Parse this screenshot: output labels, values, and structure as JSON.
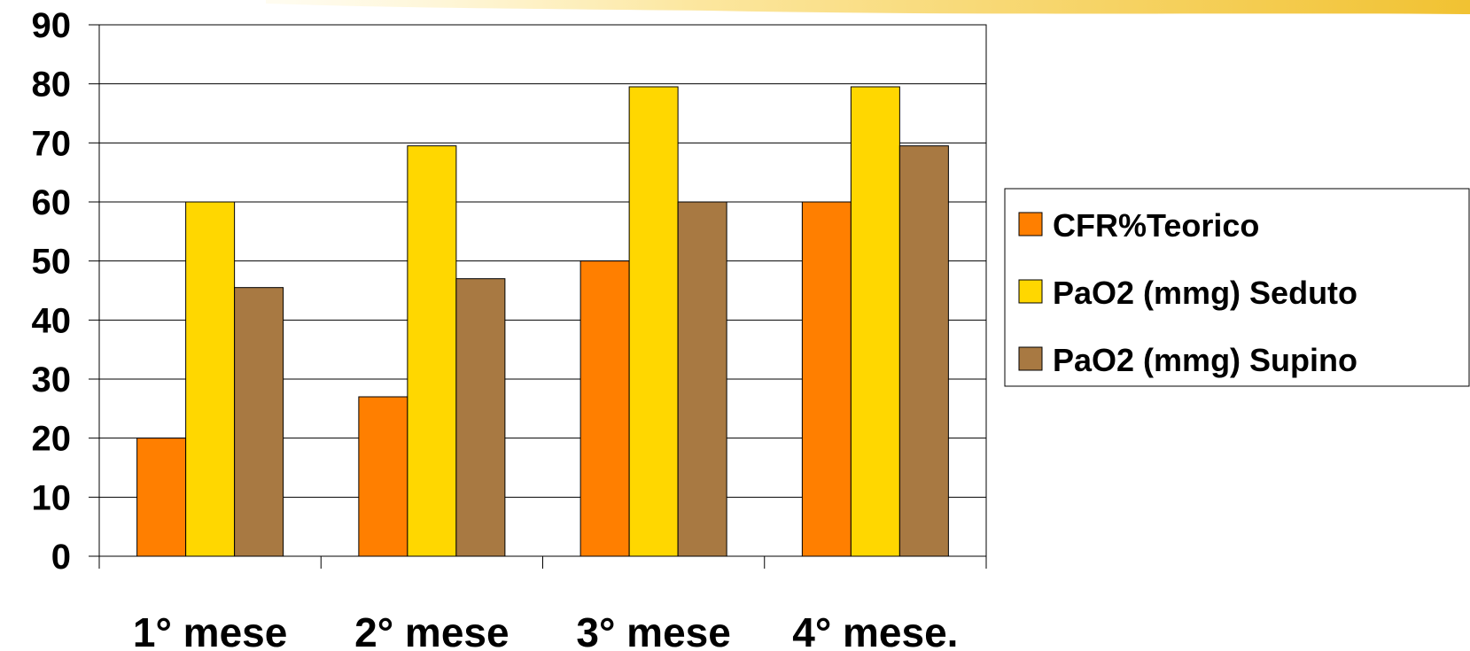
{
  "chart_data": {
    "type": "bar",
    "categories": [
      "1° mese",
      "2° mese",
      "3° mese",
      "4° mese."
    ],
    "series": [
      {
        "name": "CFR%Teorico",
        "values": [
          20,
          27,
          50,
          60
        ],
        "color": "#FF7F00"
      },
      {
        "name": "PaO2 (mmg) Seduto",
        "values": [
          60,
          69.5,
          79.5,
          79.5
        ],
        "color": "#FFD700"
      },
      {
        "name": "PaO2 (mmg) Supino",
        "values": [
          45.5,
          47,
          60,
          69.5
        ],
        "color": "#A87942"
      }
    ],
    "yticks": [
      "0",
      "10",
      "20",
      "30",
      "40",
      "50",
      "60",
      "70",
      "80",
      "90"
    ],
    "ylim": [
      0,
      90
    ],
    "grid": true,
    "legend": "right",
    "title": "",
    "xlabel": "",
    "ylabel": ""
  }
}
